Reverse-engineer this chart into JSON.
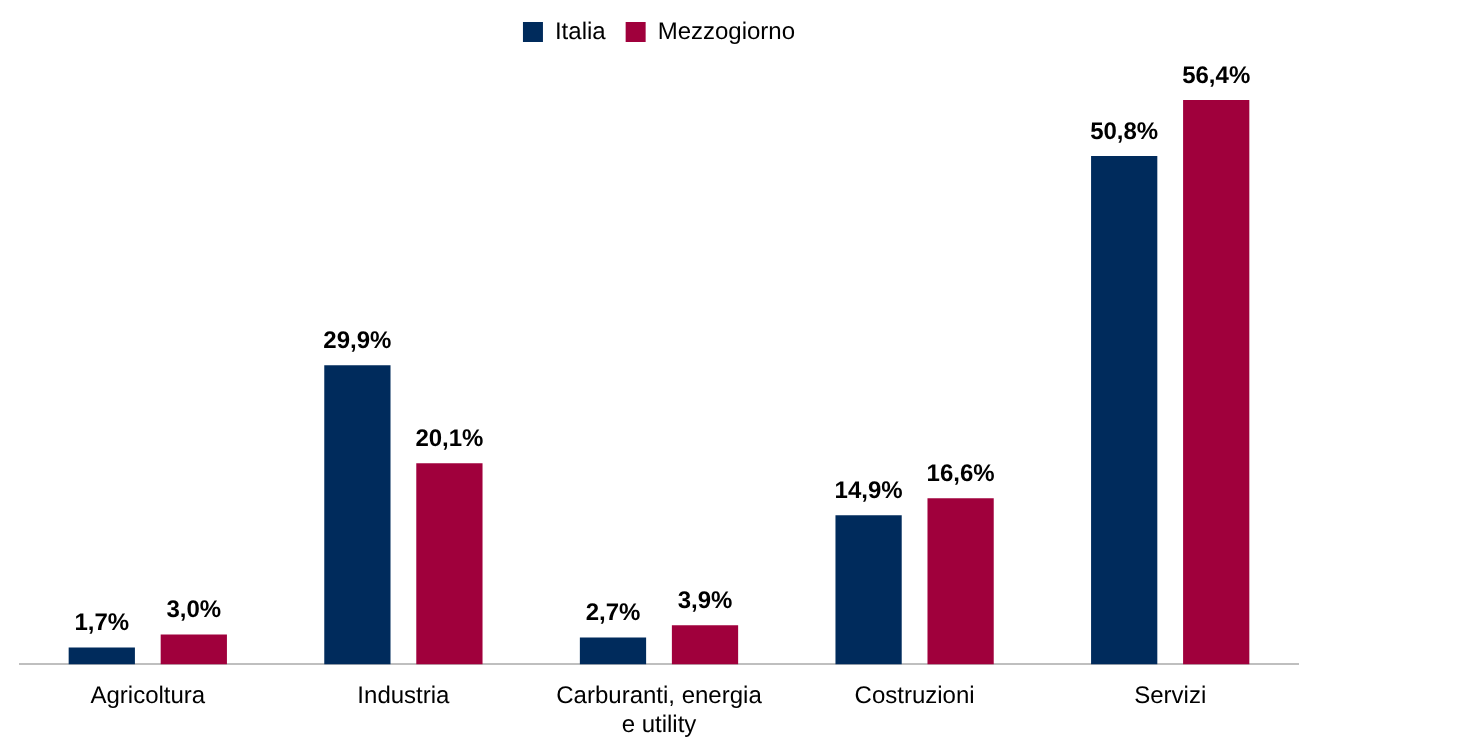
{
  "chart_data": {
    "type": "bar",
    "categories": [
      "Agricoltura",
      "Industria",
      "Carburanti, energia e utility",
      "Costruzioni",
      "Servizi"
    ],
    "series": [
      {
        "name": "Italia",
        "color": "#002b5c",
        "values": [
          1.7,
          29.9,
          2.7,
          14.9,
          50.8
        ],
        "value_labels": [
          "1,7%",
          "29,9%",
          "2,7%",
          "14,9%",
          "50,8%"
        ]
      },
      {
        "name": "Mezzogiorno",
        "color": "#a0003c",
        "values": [
          3.0,
          20.1,
          3.9,
          16.6,
          56.4
        ],
        "value_labels": [
          "3,0%",
          "20,1%",
          "3,9%",
          "16,6%",
          "56,4%"
        ]
      }
    ],
    "legend": "top",
    "tick_labels": "x",
    "grid": false
  }
}
